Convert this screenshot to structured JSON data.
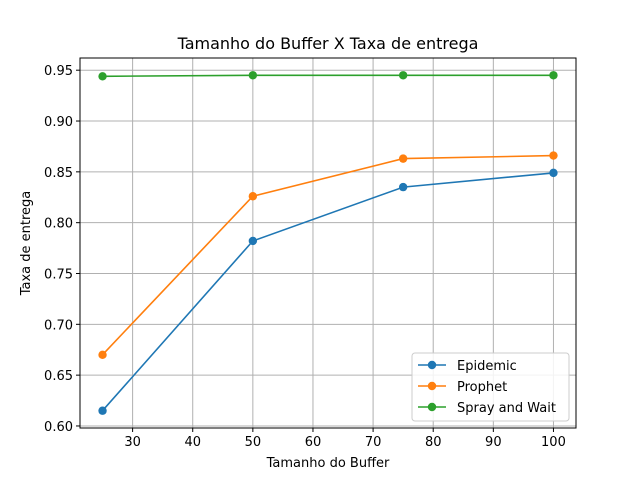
{
  "chart_data": {
    "type": "line",
    "title": "Tamanho do Buffer X Taxa de entrega",
    "xlabel": "Tamanho do Buffer",
    "ylabel": "Taxa de entrega",
    "x": [
      25,
      50,
      75,
      100
    ],
    "xlim": [
      21.25,
      103.75
    ],
    "ylim": [
      0.598,
      0.962
    ],
    "xticks": [
      30,
      40,
      50,
      60,
      70,
      80,
      90,
      100
    ],
    "yticks": [
      0.6,
      0.65,
      0.7,
      0.75,
      0.8,
      0.85,
      0.9,
      0.95
    ],
    "xtick_labels": [
      "30",
      "40",
      "50",
      "60",
      "70",
      "80",
      "90",
      "100"
    ],
    "ytick_labels": [
      "0.60",
      "0.65",
      "0.70",
      "0.75",
      "0.80",
      "0.85",
      "0.90",
      "0.95"
    ],
    "grid": true,
    "legend_position": "bottom-right",
    "series": [
      {
        "name": "Epidemic",
        "color": "#1f77b4",
        "values": [
          0.615,
          0.782,
          0.835,
          0.849
        ]
      },
      {
        "name": "Prophet",
        "color": "#ff7f0e",
        "values": [
          0.67,
          0.826,
          0.863,
          0.866
        ]
      },
      {
        "name": "Spray and Wait",
        "color": "#2ca02c",
        "values": [
          0.944,
          0.945,
          0.945,
          0.945
        ]
      }
    ]
  }
}
